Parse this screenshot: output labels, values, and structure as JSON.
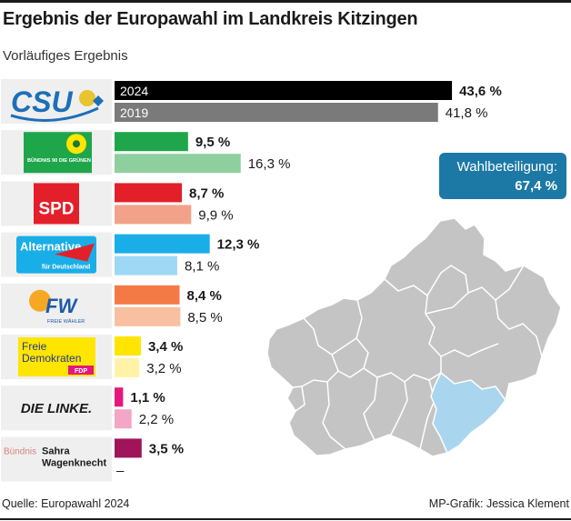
{
  "title": "Ergebnis der Europawahl im Landkreis Kitzingen",
  "subtitle": "Vorläufiges Ergebnis",
  "footer": {
    "source": "Quelle: Europawahl 2024",
    "credit": "MP-Grafik: Jessica Klement"
  },
  "turnout": {
    "label": "Wahlbeteiligung:",
    "value": "67,4 %"
  },
  "logos": {
    "csu": "CSU",
    "gruene": "BÜNDNIS 90 DIE GRÜNEN",
    "spd": "SPD",
    "afd_line1": "Alternative",
    "afd_line2": "für Deutschland",
    "fw_main": "FW",
    "fw_sub": "FREIE WÄHLER",
    "fdp_line1": "Freie",
    "fdp_line2": "Demokraten",
    "fdp_badge": "FDP",
    "linke": "DIE LINKE.",
    "bsw_buendnis": "Bündnis",
    "bsw_line1": "Sahra",
    "bsw_line2": "Wagenknecht"
  },
  "chart_data": {
    "type": "bar",
    "title": "Ergebnis der Europawahl im Landkreis Kitzingen",
    "subtitle": "Vorläufiges Ergebnis",
    "unit": "%",
    "series_names": [
      "2024",
      "2019"
    ],
    "xlim": [
      0,
      45
    ],
    "parties": [
      {
        "name": "CSU",
        "v2024": 43.6,
        "l2024": "43,6 %",
        "v2019": 41.8,
        "l2019": "41,8 %",
        "c2024": "#000000",
        "c2019": "#7a7a7a"
      },
      {
        "name": "GRÜNE",
        "v2024": 9.5,
        "l2024": "9,5 %",
        "v2019": 16.3,
        "l2019": "16,3 %",
        "c2024": "#1fa64b",
        "c2019": "#8ecf9e"
      },
      {
        "name": "SPD",
        "v2024": 8.7,
        "l2024": "8,7 %",
        "v2019": 9.9,
        "l2019": "9,9 %",
        "c2024": "#e3202a",
        "c2019": "#f3a28a"
      },
      {
        "name": "AfD",
        "v2024": 12.3,
        "l2024": "12,3 %",
        "v2019": 8.1,
        "l2019": "8,1 %",
        "c2024": "#19aee8",
        "c2019": "#9fd8f4"
      },
      {
        "name": "FREIE WÄHLER",
        "v2024": 8.4,
        "l2024": "8,4 %",
        "v2019": 8.5,
        "l2019": "8,5 %",
        "c2024": "#f47a45",
        "c2019": "#f8bfa0"
      },
      {
        "name": "FDP",
        "v2024": 3.4,
        "l2024": "3,4 %",
        "v2019": 3.2,
        "l2019": "3,2 %",
        "c2024": "#ffe500",
        "c2019": "#fff3a8"
      },
      {
        "name": "DIE LINKE",
        "v2024": 1.1,
        "l2024": "1,1 %",
        "v2019": 2.2,
        "l2019": "2,2 %",
        "c2024": "#e4187c",
        "c2019": "#f4a6c6"
      },
      {
        "name": "BSW",
        "v2024": 3.5,
        "l2024": "3,5 %",
        "v2019": null,
        "l2019": "–",
        "c2024": "#a0145a",
        "c2019": "#cccccc"
      }
    ]
  }
}
